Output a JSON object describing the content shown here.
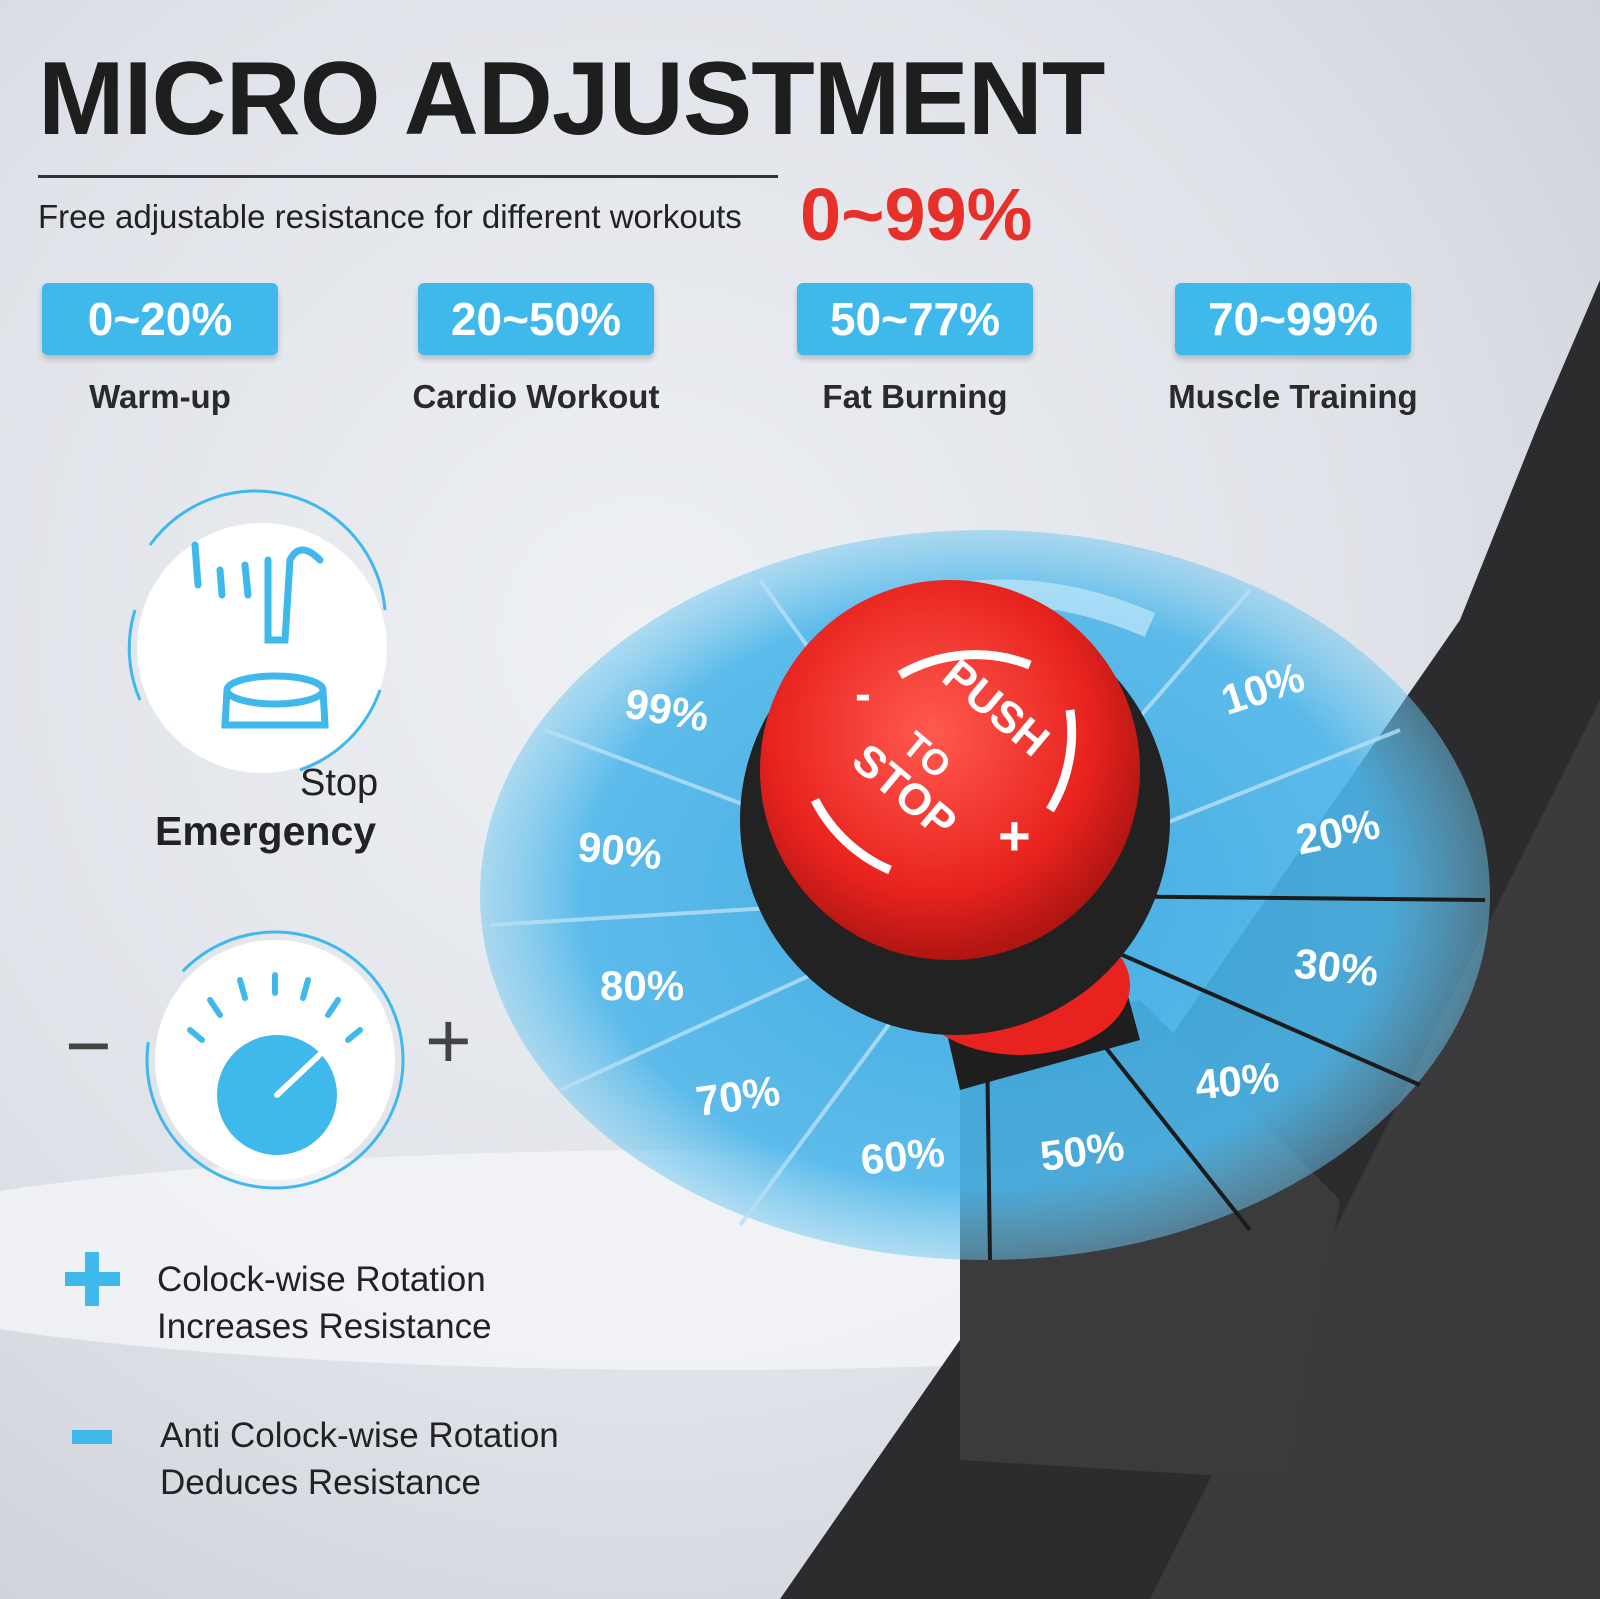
{
  "title": "MICRO ADJUSTMENT",
  "subtitle": "Free adjustable resistance for different workouts",
  "range": "0~99%",
  "modes": [
    {
      "range": "0~20%",
      "label": "Warm-up"
    },
    {
      "range": "20~50%",
      "label": "Cardio Workout"
    },
    {
      "range": "50~77%",
      "label": "Fat Burning"
    },
    {
      "range": "70~99%",
      "label": "Muscle Training"
    }
  ],
  "emergency": {
    "line1": "Stop",
    "line2": "Emergency"
  },
  "dial_signs": {
    "minus": "−",
    "plus": "+"
  },
  "legend": [
    {
      "icon": "plus-icon",
      "line1": "Colock-wise Rotation",
      "line2": "Increases Resistance"
    },
    {
      "icon": "minus-icon",
      "line1": "Anti Colock-wise Rotation",
      "line2": "Deduces Resistance"
    }
  ],
  "knob": {
    "push": "PUSH",
    "to": "TO",
    "stop": "STOP",
    "minus": "-",
    "plus": "+"
  },
  "dial_labels": [
    "10%",
    "20%",
    "30%",
    "40%",
    "50%",
    "60%",
    "70%",
    "80%",
    "90%",
    "99%"
  ],
  "colors": {
    "accent": "#3fb8ec",
    "red": "#e8302a"
  }
}
